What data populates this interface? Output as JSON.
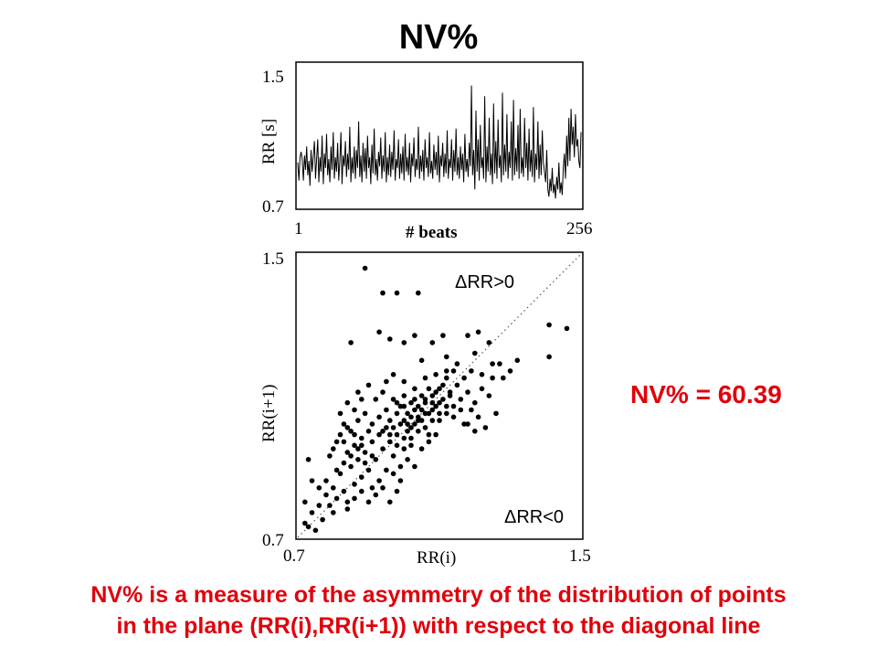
{
  "title": "NV%",
  "nv_value_text": "NV% = 60.39",
  "caption": {
    "line1": "NV% is a measure of the asymmetry of the distribution of points",
    "line2": "in the plane (RR(i),RR(i+1)) with respect to the diagonal line"
  },
  "colors": {
    "accent": "#e0000b",
    "ink": "#000000"
  },
  "chart_data": [
    {
      "type": "line",
      "xlabel": "# beats",
      "ylabel": "RR [s]",
      "xlim": [
        1,
        256
      ],
      "ylim": [
        0.7,
        1.5
      ],
      "x_tick_labels": [
        "1",
        "256"
      ],
      "y_tick_labels": [
        "1.5",
        "0.7"
      ],
      "grid": false,
      "series": [
        {
          "values": [
            0.95,
            0.85,
            0.98,
            1.01,
            0.97,
            0.85,
            0.99,
            0.91,
            1.04,
            0.88,
            0.96,
            0.82,
            1.02,
            0.9,
            0.99,
            1.07,
            0.86,
            0.97,
            1.08,
            0.84,
            0.98,
            0.9,
            1.1,
            0.83,
            1.0,
            0.92,
            1.11,
            0.88,
            0.97,
            0.84,
            1.04,
            0.91,
            1.12,
            0.86,
            0.98,
            0.9,
            1.06,
            0.85,
            0.96,
            1.12,
            0.83,
            0.99,
            0.93,
            1.07,
            0.87,
            1.0,
            0.91,
            1.15,
            0.84,
            0.98,
            0.89,
            1.04,
            0.86,
            1.02,
            0.92,
            1.18,
            0.87,
            0.99,
            0.84,
            1.06,
            0.9,
            1.03,
            0.86,
            1.1,
            0.92,
            0.98,
            0.83,
            1.05,
            0.89,
            1.14,
            0.88,
            0.97,
            0.85,
            1.01,
            0.93,
            1.09,
            0.86,
            0.99,
            0.9,
            1.12,
            0.84,
            0.98,
            0.88,
            1.05,
            0.87,
            1.01,
            0.91,
            1.13,
            0.85,
            0.97,
            0.92,
            1.08,
            0.86,
            1.0,
            0.89,
            1.04,
            0.85,
            1.11,
            0.9,
            0.98,
            0.88,
            1.06,
            0.84,
            1.0,
            0.93,
            1.09,
            0.87,
            0.97,
            0.91,
            1.15,
            0.86,
            0.99,
            0.9,
            1.02,
            0.85,
            1.08,
            0.92,
            0.98,
            0.87,
            1.12,
            0.89,
            0.96,
            0.86,
            1.05,
            0.91,
            1.01,
            0.88,
            1.1,
            0.84,
            0.99,
            0.93,
            1.06,
            0.87,
            1.0,
            0.89,
            1.13,
            0.86,
            0.97,
            0.92,
            1.08,
            0.85,
            1.02,
            0.9,
            1.14,
            0.88,
            0.98,
            0.86,
            1.04,
            0.91,
            1.0,
            0.84,
            1.11,
            0.9,
            0.97,
            0.87,
            1.06,
            0.93,
            1.38,
            0.88,
            1.02,
            0.8,
            1.24,
            0.9,
            1.08,
            0.85,
            1.16,
            0.92,
            0.98,
            0.86,
            1.32,
            0.84,
            1.04,
            0.9,
            1.2,
            0.88,
            1.0,
            0.83,
            1.28,
            0.89,
            1.07,
            0.86,
            1.19,
            0.92,
            0.99,
            0.84,
            1.34,
            0.88,
            1.05,
            0.9,
            1.22,
            0.86,
            1.01,
            0.92,
            1.18,
            0.85,
            1.3,
            0.88,
            1.03,
            0.9,
            1.16,
            0.86,
            1.25,
            0.89,
            0.98,
            0.87,
            1.2,
            0.92,
            1.06,
            0.85,
            1.14,
            0.9,
            1.02,
            0.87,
            1.26,
            0.84,
            1.0,
            0.91,
            1.18,
            0.86,
            1.05,
            0.88,
            1.13,
            0.95,
            0.9,
            0.84,
            1.02,
            0.8,
            0.76,
            0.86,
            0.79,
            0.92,
            0.78,
            0.83,
            0.75,
            0.87,
            0.8,
            0.95,
            0.78,
            0.84,
            0.77,
            0.92,
            1.0,
            0.86,
            1.1,
            0.93,
            1.2,
            0.96,
            1.25,
            1.05,
            1.15,
            0.98,
            1.22,
            1.04,
            1.08,
            0.96,
            0.92,
            1.12
          ]
        }
      ]
    },
    {
      "type": "scatter",
      "xlabel": "RR(i)",
      "ylabel": "RR(i+1)",
      "xlim": [
        0.7,
        1.5
      ],
      "ylim": [
        0.7,
        1.5
      ],
      "x_tick_labels": [
        "0.7",
        "1.5"
      ],
      "y_tick_labels": [
        "1.5",
        "0.7"
      ],
      "grid": false,
      "diagonal": {
        "from": [
          0.7,
          0.7
        ],
        "to": [
          1.5,
          1.5
        ],
        "style": "dotted"
      },
      "annotations": [
        "ΔRR>0",
        "ΔRR<0"
      ],
      "points": [
        [
          0.89,
          1.46
        ],
        [
          0.94,
          1.39
        ],
        [
          0.98,
          1.39
        ],
        [
          1.04,
          1.39
        ],
        [
          1.41,
          1.3
        ],
        [
          1.46,
          1.29
        ],
        [
          1.41,
          1.21
        ],
        [
          0.85,
          1.25
        ],
        [
          0.93,
          1.28
        ],
        [
          0.96,
          1.26
        ],
        [
          1.0,
          1.25
        ],
        [
          1.03,
          1.27
        ],
        [
          1.08,
          1.25
        ],
        [
          1.11,
          1.27
        ],
        [
          1.18,
          1.27
        ],
        [
          1.21,
          1.28
        ],
        [
          1.24,
          1.25
        ],
        [
          1.05,
          1.2
        ],
        [
          1.12,
          1.21
        ],
        [
          1.2,
          1.22
        ],
        [
          1.25,
          1.19
        ],
        [
          0.73,
          0.73
        ],
        [
          0.75,
          0.72
        ],
        [
          0.72,
          0.74
        ],
        [
          0.77,
          0.75
        ],
        [
          0.74,
          0.77
        ],
        [
          0.72,
          0.8
        ],
        [
          0.76,
          0.79
        ],
        [
          0.79,
          0.79
        ],
        [
          0.81,
          0.81
        ],
        [
          0.8,
          0.84
        ],
        [
          0.78,
          0.86
        ],
        [
          0.83,
          0.83
        ],
        [
          0.84,
          0.8
        ],
        [
          0.86,
          0.85
        ],
        [
          0.82,
          0.88
        ],
        [
          0.85,
          0.9
        ],
        [
          0.88,
          0.87
        ],
        [
          0.9,
          0.89
        ],
        [
          0.87,
          0.92
        ],
        [
          0.91,
          0.84
        ],
        [
          0.93,
          0.86
        ],
        [
          0.89,
          0.94
        ],
        [
          0.92,
          0.92
        ],
        [
          0.95,
          0.89
        ],
        [
          0.94,
          0.95
        ],
        [
          0.97,
          0.93
        ],
        [
          0.99,
          0.9
        ],
        [
          0.96,
          0.97
        ],
        [
          1.0,
          0.95
        ],
        [
          0.98,
          0.99
        ],
        [
          1.02,
          0.98
        ],
        [
          1.04,
          1.0
        ],
        [
          1.01,
          1.02
        ],
        [
          1.05,
          1.03
        ],
        [
          1.03,
          1.06
        ],
        [
          1.07,
          1.05
        ],
        [
          1.06,
          1.08
        ],
        [
          1.09,
          1.07
        ],
        [
          1.08,
          1.1
        ],
        [
          1.11,
          1.09
        ],
        [
          1.13,
          1.11
        ],
        [
          1.1,
          1.12
        ],
        [
          1.15,
          1.13
        ],
        [
          1.12,
          1.15
        ],
        [
          1.17,
          1.15
        ],
        [
          1.14,
          1.17
        ],
        [
          0.96,
          1.03
        ],
        [
          0.98,
          1.05
        ],
        [
          1.0,
          1.07
        ],
        [
          1.02,
          1.04
        ],
        [
          0.99,
          1.02
        ],
        [
          1.01,
          1.0
        ],
        [
          0.97,
          1.01
        ],
        [
          1.03,
          1.02
        ],
        [
          1.05,
          1.06
        ],
        [
          1.04,
          1.04
        ],
        [
          1.06,
          1.01
        ],
        [
          1.08,
          1.03
        ],
        [
          1.07,
          0.99
        ],
        [
          1.02,
          1.08
        ],
        [
          1.0,
          1.1
        ],
        [
          0.98,
          1.08
        ],
        [
          0.95,
          1.06
        ],
        [
          0.93,
          1.04
        ],
        [
          0.91,
          1.02
        ],
        [
          0.9,
          1.0
        ],
        [
          0.88,
          0.98
        ],
        [
          0.86,
          0.96
        ],
        [
          0.84,
          0.94
        ],
        [
          0.83,
          0.97
        ],
        [
          0.85,
          1.0
        ],
        [
          0.87,
          1.03
        ],
        [
          0.89,
          1.05
        ],
        [
          0.92,
          1.09
        ],
        [
          0.94,
          1.11
        ],
        [
          0.9,
          1.13
        ],
        [
          0.87,
          1.11
        ],
        [
          0.84,
          1.08
        ],
        [
          0.82,
          1.05
        ],
        [
          0.97,
          0.88
        ],
        [
          0.99,
          0.86
        ],
        [
          1.01,
          0.92
        ],
        [
          1.03,
          0.9
        ],
        [
          1.05,
          0.95
        ],
        [
          1.07,
          0.97
        ],
        [
          1.09,
          0.99
        ],
        [
          1.1,
          1.03
        ],
        [
          1.12,
          1.05
        ],
        [
          1.14,
          1.07
        ],
        [
          1.16,
          1.09
        ],
        [
          1.18,
          1.11
        ],
        [
          1.2,
          1.08
        ],
        [
          1.22,
          1.12
        ],
        [
          1.24,
          1.1
        ],
        [
          1.21,
          1.04
        ],
        [
          1.19,
          1.06
        ],
        [
          1.17,
          1.02
        ],
        [
          0.92,
          0.82
        ],
        [
          0.94,
          0.84
        ],
        [
          0.96,
          0.8
        ],
        [
          0.98,
          0.83
        ],
        [
          0.9,
          0.8
        ],
        [
          0.88,
          0.83
        ],
        [
          0.86,
          0.81
        ],
        [
          0.84,
          0.78
        ],
        [
          0.8,
          0.77
        ],
        [
          0.78,
          0.82
        ],
        [
          0.76,
          0.84
        ],
        [
          0.74,
          0.86
        ],
        [
          0.73,
          0.92
        ],
        [
          0.79,
          0.93
        ],
        [
          0.81,
          0.97
        ],
        [
          0.83,
          1.02
        ],
        [
          0.86,
          1.06
        ],
        [
          0.88,
          1.09
        ],
        [
          0.95,
          1.14
        ],
        [
          0.97,
          1.16
        ],
        [
          1.0,
          1.14
        ],
        [
          1.03,
          1.12
        ],
        [
          1.06,
          1.15
        ],
        [
          1.09,
          1.16
        ],
        [
          1.12,
          1.17
        ],
        [
          1.15,
          1.19
        ],
        [
          1.04,
          1.07
        ],
        [
          1.06,
          1.09
        ],
        [
          1.08,
          1.06
        ],
        [
          1.1,
          1.08
        ],
        [
          1.05,
          1.1
        ],
        [
          1.07,
          1.12
        ],
        [
          1.09,
          1.11
        ],
        [
          1.11,
          1.13
        ],
        [
          1.13,
          1.1
        ],
        [
          1.1,
          1.05
        ],
        [
          1.12,
          1.07
        ],
        [
          1.14,
          1.04
        ],
        [
          1.16,
          1.06
        ],
        [
          1.0,
          1.03
        ],
        [
          1.02,
          1.01
        ],
        [
          1.04,
          1.03
        ],
        [
          1.06,
          1.05
        ],
        [
          1.08,
          1.08
        ],
        [
          1.03,
          1.09
        ],
        [
          1.01,
          1.05
        ],
        [
          0.99,
          1.07
        ],
        [
          0.97,
          1.09
        ],
        [
          0.95,
          1.01
        ],
        [
          0.93,
          0.99
        ],
        [
          0.91,
          0.97
        ],
        [
          0.94,
          1.0
        ],
        [
          0.96,
          0.99
        ],
        [
          0.98,
          0.96
        ],
        [
          1.0,
          0.98
        ],
        [
          1.02,
          0.96
        ],
        [
          1.18,
          1.02
        ],
        [
          1.2,
          1.0
        ],
        [
          1.23,
          1.01
        ],
        [
          1.26,
          1.05
        ],
        [
          1.28,
          1.15
        ],
        [
          1.3,
          1.17
        ],
        [
          1.32,
          1.2
        ],
        [
          1.27,
          1.19
        ],
        [
          1.25,
          1.15
        ],
        [
          1.22,
          1.16
        ],
        [
          1.19,
          1.17
        ],
        [
          0.81,
          0.89
        ],
        [
          0.83,
          0.91
        ],
        [
          0.85,
          0.93
        ],
        [
          0.87,
          0.95
        ],
        [
          0.89,
          0.91
        ],
        [
          0.91,
          0.93
        ],
        [
          0.88,
          0.96
        ],
        [
          0.86,
          0.99
        ],
        [
          0.84,
          1.01
        ],
        [
          0.82,
          0.99
        ],
        [
          0.8,
          0.95
        ]
      ]
    }
  ]
}
